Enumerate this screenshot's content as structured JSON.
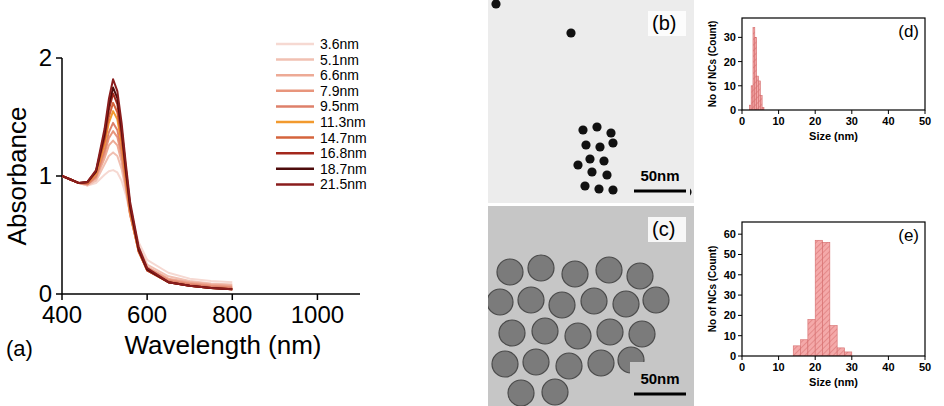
{
  "chart_data": [
    {
      "type": "line",
      "title": "(a)",
      "x_label": "Wavelength (nm)",
      "y_label": "Absorbance",
      "x": [
        400,
        420,
        440,
        460,
        480,
        500,
        510,
        520,
        530,
        540,
        550,
        560,
        580,
        600,
        650,
        700,
        750,
        800
      ],
      "xlim": [
        400,
        1100
      ],
      "xticks": [
        400,
        600,
        800,
        1000
      ],
      "ylim": [
        0,
        2
      ],
      "yticks": [
        0,
        1,
        2
      ],
      "legend": "upper right",
      "series": [
        {
          "name": "3.6nm",
          "color": "#f6d9d2",
          "values": [
            1.0,
            0.97,
            0.94,
            0.92,
            0.94,
            1.01,
            1.04,
            1.05,
            1.03,
            0.96,
            0.84,
            0.68,
            0.44,
            0.29,
            0.18,
            0.13,
            0.11,
            0.1
          ]
        },
        {
          "name": "5.1nm",
          "color": "#f1c0b2",
          "values": [
            1.0,
            0.97,
            0.94,
            0.92,
            0.96,
            1.1,
            1.17,
            1.2,
            1.17,
            1.06,
            0.88,
            0.68,
            0.4,
            0.25,
            0.15,
            0.11,
            0.09,
            0.08
          ]
        },
        {
          "name": "6.6nm",
          "color": "#edaa96",
          "values": [
            1.0,
            0.97,
            0.94,
            0.93,
            0.98,
            1.15,
            1.26,
            1.3,
            1.26,
            1.12,
            0.9,
            0.67,
            0.38,
            0.23,
            0.13,
            0.1,
            0.08,
            0.07
          ]
        },
        {
          "name": "7.9nm",
          "color": "#e8957c",
          "values": [
            1.0,
            0.97,
            0.94,
            0.93,
            0.99,
            1.19,
            1.32,
            1.38,
            1.33,
            1.17,
            0.92,
            0.67,
            0.37,
            0.22,
            0.12,
            0.09,
            0.07,
            0.06
          ]
        },
        {
          "name": "9.5nm",
          "color": "#de806a",
          "values": [
            1.0,
            0.97,
            0.94,
            0.93,
            1.0,
            1.22,
            1.37,
            1.45,
            1.39,
            1.21,
            0.94,
            0.68,
            0.36,
            0.21,
            0.11,
            0.08,
            0.06,
            0.05
          ]
        },
        {
          "name": "11.3nm",
          "color": "#f29a2e",
          "values": [
            1.0,
            0.97,
            0.94,
            0.94,
            1.02,
            1.27,
            1.45,
            1.55,
            1.48,
            1.27,
            0.97,
            0.69,
            0.36,
            0.2,
            0.1,
            0.07,
            0.05,
            0.04
          ]
        },
        {
          "name": "14.7nm",
          "color": "#d5643c",
          "values": [
            1.0,
            0.97,
            0.94,
            0.94,
            1.03,
            1.3,
            1.5,
            1.62,
            1.54,
            1.31,
            1.0,
            0.71,
            0.36,
            0.2,
            0.1,
            0.07,
            0.05,
            0.04
          ]
        },
        {
          "name": "16.8nm",
          "color": "#a3281c",
          "values": [
            1.0,
            0.97,
            0.94,
            0.95,
            1.04,
            1.33,
            1.56,
            1.7,
            1.61,
            1.36,
            1.03,
            0.73,
            0.37,
            0.2,
            0.1,
            0.07,
            0.05,
            0.04
          ]
        },
        {
          "name": "18.7nm",
          "color": "#4e0c0c",
          "values": [
            1.0,
            0.97,
            0.94,
            0.95,
            1.04,
            1.36,
            1.6,
            1.75,
            1.66,
            1.4,
            1.06,
            0.75,
            0.38,
            0.21,
            0.1,
            0.07,
            0.05,
            0.04
          ]
        },
        {
          "name": "21.5nm",
          "color": "#8a1d1d",
          "values": [
            1.0,
            0.97,
            0.94,
            0.95,
            1.05,
            1.4,
            1.65,
            1.82,
            1.72,
            1.45,
            1.1,
            0.78,
            0.4,
            0.22,
            0.1,
            0.07,
            0.05,
            0.04
          ]
        }
      ]
    },
    {
      "type": "histogram",
      "title": "(d)",
      "x_label": "Size (nm)",
      "y_label": "No of NCs (Count)",
      "bins": [
        2.0,
        2.5,
        3.0,
        3.5,
        4.0,
        4.5,
        5.0,
        5.5,
        6.0
      ],
      "counts": [
        2,
        10,
        34,
        30,
        14,
        12,
        6,
        1
      ],
      "color": "#f4a9a9",
      "xlim": [
        0,
        50
      ],
      "xticks": [
        0,
        10,
        20,
        30,
        40,
        50
      ],
      "ylim": [
        0,
        38
      ],
      "yticks": [
        0,
        10,
        20,
        30
      ]
    },
    {
      "type": "histogram",
      "title": "(e)",
      "x_label": "Size (nm)",
      "y_label": "No of NCs (Count)",
      "bins": [
        14,
        16,
        18,
        20,
        22,
        24,
        26,
        28,
        30
      ],
      "counts": [
        5,
        8,
        18,
        57,
        56,
        15,
        4,
        2
      ],
      "color": "#f4a9a9",
      "xlim": [
        0,
        50
      ],
      "xticks": [
        0,
        10,
        20,
        30,
        40,
        50
      ],
      "ylim": [
        0,
        66
      ],
      "yticks": [
        0,
        10,
        20,
        30,
        40,
        50,
        60
      ]
    }
  ],
  "images": [
    {
      "label": "(b)",
      "scale_bar": "50nm"
    },
    {
      "label": "(c)",
      "scale_bar": "50nm"
    }
  ]
}
